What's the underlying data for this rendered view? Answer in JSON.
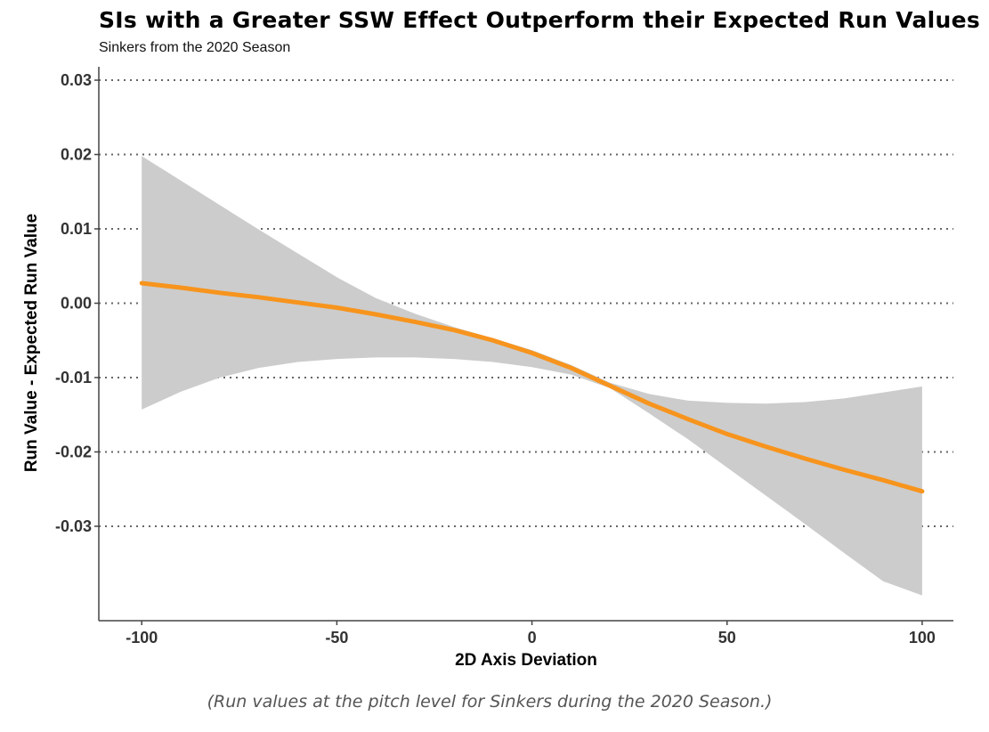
{
  "chart_data": {
    "type": "line",
    "title": "SIs with a Greater SSW Effect Outperform their Expected Run Values",
    "subtitle": "Sinkers from the 2020 Season",
    "xlabel": "2D Axis Deviation",
    "ylabel": "Run Value - Expected Run Value",
    "xlim": [
      -111,
      108
    ],
    "ylim": [
      -0.0427,
      0.0318
    ],
    "x_ticks": [
      -100,
      -50,
      0,
      50,
      100
    ],
    "x_tick_labels": [
      "-100",
      "-50",
      "0",
      "50",
      "100"
    ],
    "y_ticks": [
      0.03,
      0.02,
      0.01,
      0.0,
      -0.01,
      -0.02,
      -0.03
    ],
    "y_tick_labels": [
      "0.03",
      "0.02",
      "0.01",
      "0.00",
      "-0.01",
      "-0.02",
      "-0.03"
    ],
    "grid": "horizontal dotted",
    "series": [
      {
        "color": "#f7941d",
        "x": [
          -100,
          -90,
          -80,
          -70,
          -60,
          -50,
          -40,
          -30,
          -20,
          -10,
          0,
          10,
          20,
          30,
          40,
          50,
          60,
          70,
          80,
          90,
          100
        ],
        "y": [
          0.0027,
          0.0021,
          0.0014,
          0.0008,
          0.0001,
          -0.0006,
          -0.0015,
          -0.0025,
          -0.0036,
          -0.005,
          -0.0067,
          -0.0087,
          -0.0111,
          -0.0135,
          -0.0156,
          -0.0176,
          -0.0193,
          -0.0209,
          -0.0224,
          -0.0238,
          -0.0253
        ]
      }
    ],
    "confidence_band": {
      "color": "#cccccc",
      "x": [
        -100,
        -90,
        -80,
        -70,
        -60,
        -50,
        -40,
        -30,
        -20,
        -10,
        0,
        10,
        20,
        30,
        40,
        50,
        60,
        70,
        80,
        90,
        100
      ],
      "upper": [
        0.0198,
        0.0165,
        0.0132,
        0.0099,
        0.0067,
        0.0035,
        0.0007,
        -0.0014,
        -0.0032,
        -0.0047,
        -0.0063,
        -0.0083,
        -0.0107,
        -0.0122,
        -0.0131,
        -0.0134,
        -0.0135,
        -0.0133,
        -0.0128,
        -0.012,
        -0.0112
      ],
      "lower": [
        -0.0143,
        -0.0119,
        -0.01,
        -0.0087,
        -0.0079,
        -0.0075,
        -0.0073,
        -0.0073,
        -0.0075,
        -0.0079,
        -0.0086,
        -0.0096,
        -0.0114,
        -0.0148,
        -0.0183,
        -0.0221,
        -0.0259,
        -0.0297,
        -0.0336,
        -0.0374,
        -0.0393
      ]
    }
  },
  "caption": "(Run values at the pitch level for Sinkers during the 2020 Season.)"
}
